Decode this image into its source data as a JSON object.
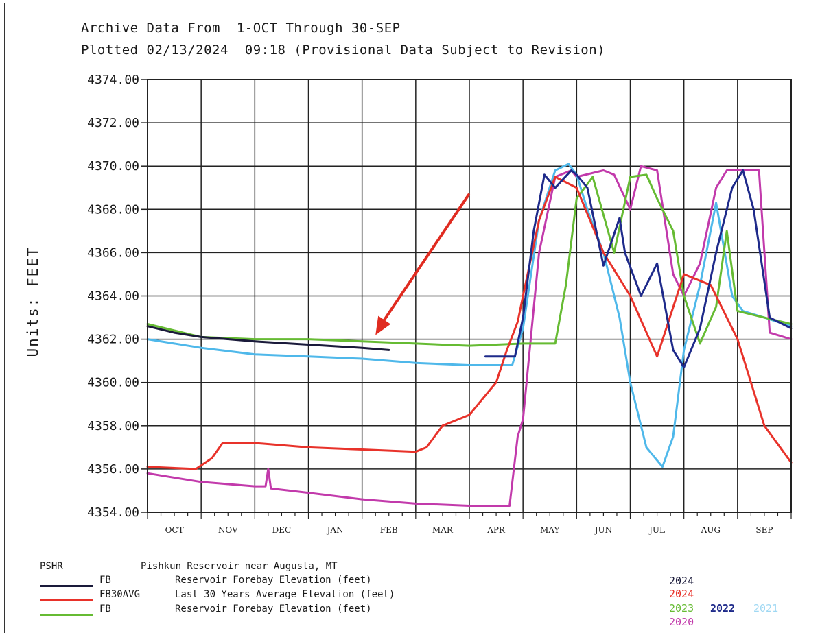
{
  "header": {
    "line1": "Archive Data From  1-OCT Through 30-SEP",
    "line2": "Plotted 02/13/2024  09:18 (Provisional Data Subject to Revision)"
  },
  "colors": {
    "fb_2024": "#1a1a3a",
    "fb30avg": "#e8322a",
    "fb_2023": "#66bb33",
    "fb_2022": "#1e2a8a",
    "fb_2021": "#4fb8ea",
    "fb_2020": "#c23aab",
    "annotation_arrow": "#e02b20"
  },
  "legend": {
    "station_code": "PSHR",
    "station_name": "Pishkun Reservoir near Augusta, MT",
    "items": [
      {
        "code": "FB",
        "description": "Reservoir Forebay Elevation (feet)"
      },
      {
        "code": "FB30AVG",
        "description": "Last 30 Years Average Elevation (feet)"
      },
      {
        "code": "FB",
        "description": "Reservoir Forebay Elevation (feet)"
      }
    ],
    "years": {
      "row1": "2024",
      "row2": "2024",
      "row3": [
        "2023",
        "2022",
        "2021"
      ],
      "row4": "2020"
    }
  },
  "chart_data": {
    "type": "line",
    "title": "",
    "xlabel": "",
    "ylabel": "Units:  FEET",
    "categories": [
      "OCT",
      "NOV",
      "DEC",
      "JAN",
      "FEB",
      "MAR",
      "APR",
      "MAY",
      "JUN",
      "JUL",
      "AUG",
      "SEP"
    ],
    "ylim": [
      4354.0,
      4374.0
    ],
    "yticks": [
      "4354.00",
      "4356.00",
      "4358.00",
      "4360.00",
      "4362.00",
      "4364.00",
      "4366.00",
      "4368.00",
      "4370.00",
      "4372.00",
      "4374.00"
    ],
    "grid": true,
    "legend_placement": "bottom",
    "annotation": {
      "type": "arrow",
      "points_to_month": "FEB",
      "points_to_value": 4362.0
    },
    "series": [
      {
        "name": "FB 2024",
        "color": "#1a1a3a",
        "x": [
          0,
          0.5,
          1,
          2,
          3,
          4,
          4.5
        ],
        "y": [
          4362.6,
          4362.3,
          4362.1,
          4361.9,
          4361.75,
          4361.6,
          4361.5
        ]
      },
      {
        "name": "FB30AVG",
        "color": "#e8322a",
        "x": [
          0,
          0.9,
          1.2,
          1.4,
          2,
          3,
          4,
          5,
          5.2,
          5.5,
          6,
          6.5,
          6.7,
          6.9,
          7,
          7.3,
          7.6,
          8,
          8.5,
          9,
          9.5,
          10,
          10.5,
          11,
          11.5,
          12
        ],
        "y": [
          4356.1,
          4356.0,
          4356.5,
          4357.2,
          4357.2,
          4357.0,
          4356.9,
          4356.8,
          4357.0,
          4358.0,
          4358.5,
          4360.0,
          4361.5,
          4362.8,
          4364.0,
          4367.5,
          4369.5,
          4369.0,
          4366.0,
          4364.0,
          4361.2,
          4365.0,
          4364.5,
          4362.0,
          4358.0,
          4356.3
        ]
      },
      {
        "name": "FB 2023",
        "color": "#66bb33",
        "x": [
          0,
          1,
          2,
          3,
          4,
          5,
          6,
          7,
          7.6,
          7.8,
          8.0,
          8.3,
          8.7,
          9.0,
          9.3,
          9.5,
          9.8,
          10.0,
          10.3,
          10.6,
          10.8,
          11,
          11.5,
          12
        ],
        "y": [
          4362.7,
          4362.1,
          4362.0,
          4362.0,
          4361.9,
          4361.8,
          4361.7,
          4361.8,
          4361.8,
          4364.5,
          4368.5,
          4369.5,
          4366.0,
          4369.5,
          4369.6,
          4368.5,
          4367.0,
          4364.0,
          4361.8,
          4363.5,
          4367.0,
          4363.3,
          4363.0,
          4362.7
        ]
      },
      {
        "name": "2022",
        "color": "#1e2a8a",
        "x": [
          6.3,
          6.6,
          6.85,
          7.0,
          7.2,
          7.4,
          7.6,
          7.9,
          8.0,
          8.2,
          8.5,
          8.8,
          8.9,
          9.2,
          9.5,
          9.8,
          10.0,
          10.3,
          10.6,
          10.9,
          11.1,
          11.3,
          11.6,
          12
        ],
        "y": [
          4361.2,
          4361.2,
          4361.2,
          4363.0,
          4367.0,
          4369.6,
          4369.0,
          4369.8,
          4369.6,
          4369.0,
          4365.4,
          4367.6,
          4366.0,
          4364.0,
          4365.5,
          4361.5,
          4360.7,
          4362.5,
          4366.0,
          4369.0,
          4369.8,
          4368.0,
          4363.0,
          4362.5
        ]
      },
      {
        "name": "2021",
        "color": "#4fb8ea",
        "x": [
          0,
          1,
          2,
          3,
          4,
          5,
          6,
          6.8,
          7.0,
          7.3,
          7.6,
          7.85,
          8.0,
          8.2,
          8.5,
          8.8,
          9.0,
          9.3,
          9.6,
          9.8,
          10.0,
          10.3,
          10.6,
          10.9,
          11.1,
          11.5,
          12
        ],
        "y": [
          4362.0,
          4361.6,
          4361.3,
          4361.2,
          4361.1,
          4360.9,
          4360.8,
          4360.8,
          4362.5,
          4367.5,
          4369.8,
          4370.1,
          4369.6,
          4368.0,
          4366.0,
          4363.0,
          4360.0,
          4357.0,
          4356.1,
          4357.5,
          4361.5,
          4364.5,
          4368.3,
          4364.0,
          4363.3,
          4363.0,
          4362.6
        ]
      },
      {
        "name": "2020",
        "color": "#c23aab",
        "x": [
          0,
          1,
          2,
          2.2,
          2.25,
          2.3,
          3,
          4,
          5,
          6,
          6.75,
          6.9,
          7.0,
          7.3,
          7.6,
          7.9,
          8.0,
          8.5,
          8.7,
          9.0,
          9.2,
          9.5,
          9.8,
          10.0,
          10.3,
          10.6,
          10.8,
          11.0,
          11.2,
          11.4,
          11.6,
          12
        ],
        "y": [
          4355.8,
          4355.4,
          4355.2,
          4355.2,
          4356.0,
          4355.1,
          4354.9,
          4354.6,
          4354.4,
          4354.3,
          4354.3,
          4357.5,
          4358.3,
          4366.0,
          4369.5,
          4369.8,
          4369.5,
          4369.8,
          4369.6,
          4368.0,
          4370.0,
          4369.8,
          4365.0,
          4364.0,
          4365.5,
          4369.0,
          4369.8,
          4369.8,
          4369.8,
          4369.8,
          4362.3,
          4362.0
        ]
      }
    ]
  }
}
